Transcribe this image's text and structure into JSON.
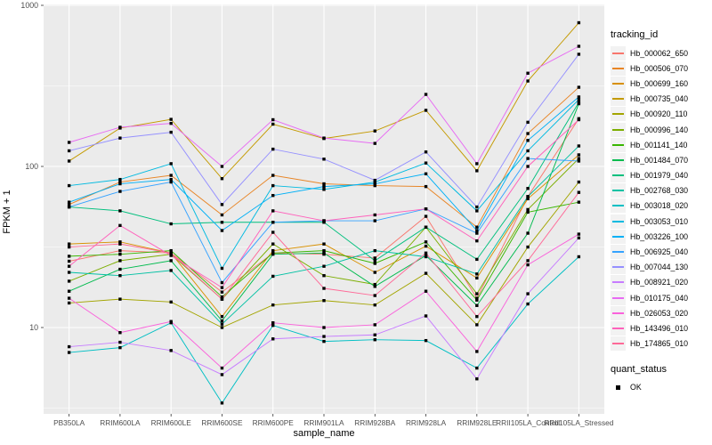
{
  "style": {
    "panel_bg": "#EBEBEB",
    "grid_color": "#FFFFFF",
    "axis_text_color": "#4D4D4D",
    "tick_color": "#333333",
    "point_color": "#000000",
    "legend_key_bg": "#F2F2F2"
  },
  "legend": {
    "tracking_title": "tracking_id",
    "quant_title": "quant_status",
    "quant_value": "OK",
    "quant_key_color": "#000000"
  },
  "chart_data": {
    "type": "line",
    "title": "",
    "xlabel": "sample_name",
    "ylabel": "FPKM + 1",
    "y_scale": "log10",
    "grid": true,
    "legend_position": "right",
    "ylim": [
      2.9,
      950
    ],
    "y_ticks": [
      10,
      100,
      1000
    ],
    "y_tick_labels": [
      "10",
      "100",
      "1000"
    ],
    "y_minor_ticks": [
      3.162,
      31.62,
      316.2
    ],
    "categories": [
      "PB350LA",
      "RRIM600LA",
      "RRIM600LE",
      "RRIM600SE",
      "RRIM600PE",
      "RRIM901LA",
      "RRIM928BA",
      "RRIM928LA",
      "RRIM928LE",
      "RRII105LA_Control",
      "RRII105LA_Stressed"
    ],
    "series": [
      {
        "name": "Hb_000062_650",
        "color": "#F8766D",
        "values": [
          25.8,
          30,
          29,
          16.6,
          29,
          28.5,
          27,
          49,
          15.2,
          65,
          198
        ]
      },
      {
        "name": "Hb_000506_070",
        "color": "#E88526",
        "values": [
          58,
          80,
          88,
          50,
          88,
          78,
          76,
          75,
          42,
          160,
          310
        ]
      },
      {
        "name": "Hb_000699_160",
        "color": "#D89000",
        "values": [
          33,
          34,
          29,
          11.7,
          30,
          33,
          22,
          32,
          20.3,
          63,
          118
        ]
      },
      {
        "name": "Hb_000735_040",
        "color": "#C49A00",
        "values": [
          108,
          173,
          196,
          84,
          183,
          149,
          166,
          223,
          94,
          339,
          780
        ]
      },
      {
        "name": "Hb_000920_110",
        "color": "#A3A500",
        "values": [
          14.2,
          15,
          14.4,
          10,
          13.8,
          14.7,
          13.8,
          21.7,
          10.4,
          31.6,
          80
        ]
      },
      {
        "name": "Hb_000996_140",
        "color": "#7CAE00",
        "values": [
          19.4,
          26,
          28.5,
          15,
          33,
          21,
          18.5,
          42,
          16.2,
          54,
          112
        ]
      },
      {
        "name": "Hb_001141_140",
        "color": "#39B600",
        "values": [
          27.7,
          28.5,
          30,
          15.5,
          29,
          30,
          25,
          34,
          14.8,
          52,
          60
        ]
      },
      {
        "name": "Hb_001484_070",
        "color": "#00BB4E",
        "values": [
          16.8,
          23,
          26,
          11,
          28.5,
          29,
          18,
          28,
          13.7,
          38.5,
          245
        ]
      },
      {
        "name": "Hb_001979_040",
        "color": "#00BF7D",
        "values": [
          56,
          53,
          44,
          45,
          45,
          45,
          26,
          42,
          26.5,
          73,
          250
        ]
      },
      {
        "name": "Hb_002768_030",
        "color": "#00C1A3",
        "values": [
          22,
          21,
          22.6,
          10.5,
          20.8,
          24,
          30,
          27.5,
          21.5,
          65,
          134
        ]
      },
      {
        "name": "Hb_003018_020",
        "color": "#00BFC4",
        "values": [
          7.0,
          7.5,
          10.7,
          3.4,
          10.3,
          8.2,
          8.4,
          8.3,
          5.6,
          14,
          27.5
        ]
      },
      {
        "name": "Hb_003053_010",
        "color": "#00BAE0",
        "values": [
          76,
          83,
          104,
          23.3,
          76,
          72,
          80,
          105,
          53,
          125,
          260
        ]
      },
      {
        "name": "Hb_003226_100",
        "color": "#00B0F6",
        "values": [
          60,
          78,
          83,
          40,
          66,
          75,
          78,
          90,
          40,
          145,
          270
        ]
      },
      {
        "name": "Hb_006925_040",
        "color": "#35A2FF",
        "values": [
          56,
          70,
          80,
          19,
          45,
          46,
          46,
          54.5,
          38.5,
          112,
          108
        ]
      },
      {
        "name": "Hb_007044_130",
        "color": "#9590FF",
        "values": [
          125,
          150,
          163,
          58,
          128,
          111,
          82,
          123,
          56,
          188,
          497
        ]
      },
      {
        "name": "Hb_008921_020",
        "color": "#C77CFF",
        "values": [
          7.6,
          8.1,
          7.2,
          5.1,
          8.5,
          8.8,
          9,
          11.8,
          4.8,
          16.2,
          36
        ]
      },
      {
        "name": "Hb_010175_040",
        "color": "#E76BF3",
        "values": [
          141,
          175,
          185,
          100,
          195,
          150,
          139,
          280,
          104,
          379,
          557
        ]
      },
      {
        "name": "Hb_026053_020",
        "color": "#FA62DB",
        "values": [
          15.2,
          9.3,
          10.9,
          5.6,
          10.7,
          10,
          10.4,
          16.8,
          7.1,
          24.5,
          38
        ]
      },
      {
        "name": "Hb_143496_010",
        "color": "#FF62BC",
        "values": [
          24,
          43,
          28,
          17.7,
          53,
          46,
          50,
          54.5,
          34.5,
          100,
          195
        ]
      },
      {
        "name": "Hb_174865_010",
        "color": "#FF6A98",
        "values": [
          31.6,
          33,
          29,
          15,
          39,
          17.5,
          15.8,
          29,
          11.7,
          26,
          69
        ]
      }
    ]
  }
}
